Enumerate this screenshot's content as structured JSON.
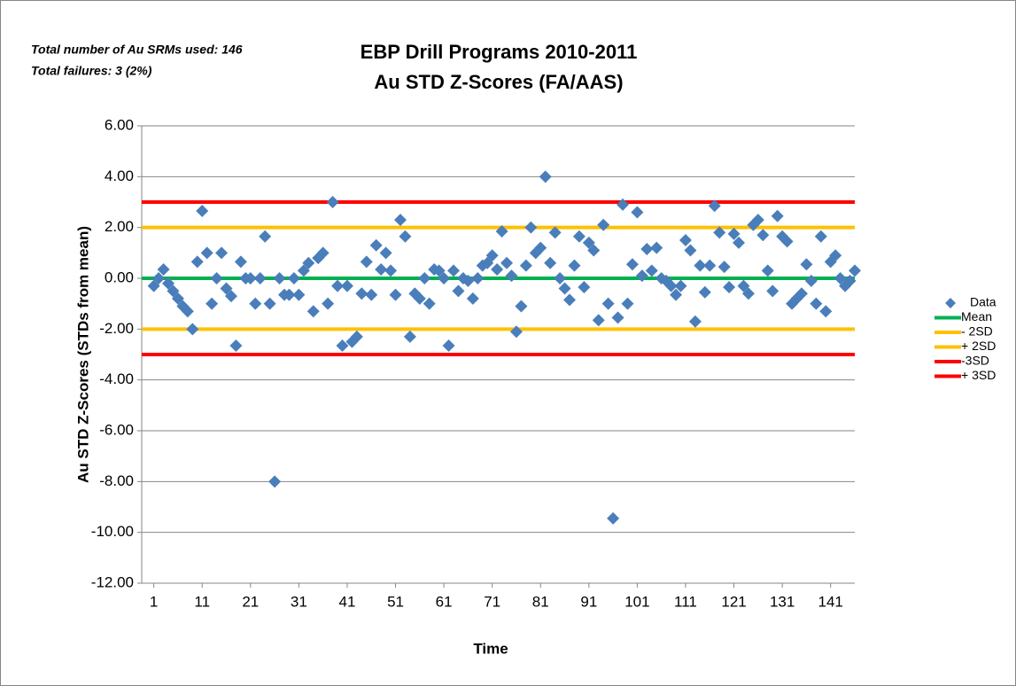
{
  "chart_data": {
    "type": "scatter",
    "title": [
      "EBP Drill Programs 2010-2011",
      "Au STD Z-Scores (FA/AAS)"
    ],
    "annotations": [
      "Total number of Au SRMs used: 146",
      "Total failures: 3 (2%)"
    ],
    "x_label": "Time",
    "y_label": "Au STD Z-Scores (STDs from mean)",
    "xlim": [
      -1.5,
      146
    ],
    "xticks": [
      1,
      11,
      21,
      31,
      41,
      51,
      61,
      71,
      81,
      91,
      101,
      111,
      121,
      131,
      141
    ],
    "ylim": [
      -12,
      6
    ],
    "yticks": [
      {
        "value": -12,
        "label": "-12.00"
      },
      {
        "value": -10,
        "label": "-10.00"
      },
      {
        "value": -8,
        "label": "-8.00"
      },
      {
        "value": -6,
        "label": "-6.00"
      },
      {
        "value": -4,
        "label": "-4.00"
      },
      {
        "value": -2,
        "label": "-2.00"
      },
      {
        "value": 0,
        "label": "0.00"
      },
      {
        "value": 2,
        "label": "2.00"
      },
      {
        "value": 4,
        "label": "4.00"
      },
      {
        "value": 6,
        "label": "6.00"
      }
    ],
    "grid": true,
    "legend": "right",
    "series": [
      {
        "name": "Data",
        "color": "#4a7ebb",
        "x": [
          1,
          2,
          3,
          4,
          5,
          6,
          7,
          8,
          9,
          10,
          11,
          12,
          13,
          14,
          15,
          16,
          17,
          18,
          19,
          20,
          21,
          22,
          23,
          24,
          25,
          26,
          27,
          28,
          29,
          30,
          31,
          32,
          33,
          34,
          35,
          36,
          37,
          38,
          39,
          40,
          41,
          42,
          43,
          44,
          45,
          46,
          47,
          48,
          49,
          50,
          51,
          52,
          53,
          54,
          55,
          56,
          57,
          58,
          59,
          60,
          61,
          62,
          63,
          64,
          65,
          66,
          67,
          68,
          69,
          70,
          71,
          72,
          73,
          74,
          75,
          76,
          77,
          78,
          79,
          80,
          81,
          82,
          83,
          84,
          85,
          86,
          87,
          88,
          89,
          90,
          91,
          92,
          93,
          94,
          95,
          96,
          97,
          98,
          99,
          100,
          101,
          102,
          103,
          104,
          105,
          106,
          107,
          108,
          109,
          110,
          111,
          112,
          113,
          114,
          115,
          116,
          117,
          118,
          119,
          120,
          121,
          122,
          123,
          124,
          125,
          126,
          127,
          128,
          129,
          130,
          131,
          132,
          133,
          134,
          135,
          136,
          137,
          138,
          139,
          140,
          141,
          142,
          143,
          144,
          145,
          146
        ],
        "values": [
          -0.3,
          0,
          0.35,
          -0.2,
          -0.5,
          -0.8,
          -1.1,
          -1.3,
          -2.0,
          0.65,
          2.65,
          1.0,
          -1.0,
          0,
          1.0,
          -0.4,
          -0.7,
          -2.65,
          0.65,
          0,
          0,
          -1.0,
          0,
          1.65,
          -1.0,
          -8.0,
          0,
          -0.65,
          -0.65,
          0,
          -0.65,
          0.3,
          0.6,
          -1.3,
          0.8,
          1.0,
          -1.0,
          3.0,
          -0.3,
          -2.65,
          -0.3,
          -2.5,
          -2.3,
          -0.6,
          0.65,
          -0.65,
          1.3,
          0.35,
          1.0,
          0.3,
          -0.65,
          2.3,
          1.65,
          -2.3,
          -0.6,
          -0.8,
          0,
          -1.0,
          0.35,
          0.3,
          0,
          -2.65,
          0.3,
          -0.5,
          0,
          -0.1,
          -0.8,
          0,
          0.5,
          0.6,
          0.9,
          0.35,
          1.85,
          0.6,
          0.1,
          -2.1,
          -1.1,
          0.5,
          2.0,
          1.0,
          1.2,
          4.0,
          0.6,
          1.8,
          0,
          -0.4,
          -0.85,
          0.5,
          1.65,
          -0.35,
          1.4,
          1.1,
          -1.65,
          2.1,
          -1.0,
          -9.45,
          -1.55,
          2.9,
          -1.0,
          0.55,
          2.6,
          0.1,
          1.15,
          0.3,
          1.2,
          0,
          -0.1,
          -0.3,
          -0.65,
          -0.3,
          1.5,
          1.1,
          -1.7,
          0.5,
          -0.55,
          0.5,
          2.85,
          1.8,
          0.45,
          -0.35,
          1.75,
          1.4,
          -0.3,
          -0.6,
          2.1,
          2.3,
          1.7,
          0.3,
          -0.5,
          2.45,
          1.65,
          1.45,
          -1.0,
          -0.8,
          -0.6,
          0.55,
          -0.1,
          -1.0,
          1.65,
          -1.3,
          0.65,
          0.9,
          0,
          -0.3,
          -0.1,
          0.3
        ]
      }
    ],
    "reference_lines": [
      {
        "name": "Mean",
        "color": "#00b050",
        "value": 0
      },
      {
        "name": "- 2SD",
        "color": "#ffc000",
        "value": -2
      },
      {
        "name": "+ 2SD",
        "color": "#ffc000",
        "value": 2
      },
      {
        "name": "-3SD",
        "color": "#ff0000",
        "value": -3
      },
      {
        "name": "+ 3SD",
        "color": "#ff0000",
        "value": 3
      }
    ]
  }
}
